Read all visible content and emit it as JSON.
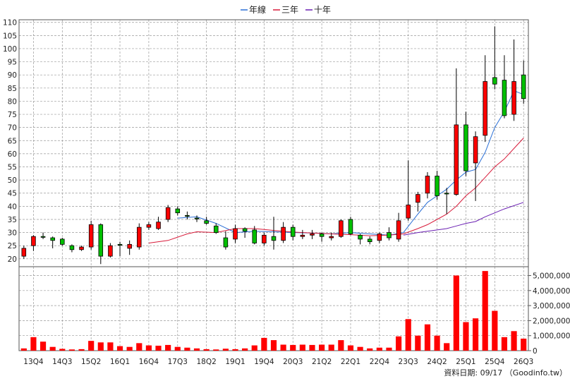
{
  "chart_data": {
    "type": "candlestick_with_volume",
    "legend": [
      {
        "name": "年線",
        "color": "#2a6fd6"
      },
      {
        "name": "三年",
        "color": "#d81b3a"
      },
      {
        "name": "十年",
        "color": "#6a1fb2"
      }
    ],
    "price_axis": {
      "ylim": [
        17,
        111
      ],
      "ticks": [
        20,
        25,
        30,
        35,
        40,
        45,
        50,
        55,
        60,
        65,
        70,
        75,
        80,
        85,
        90,
        95,
        100,
        105,
        110
      ]
    },
    "volume_axis": {
      "ylim": [
        0,
        5400000
      ],
      "ticks": [
        0,
        1000000,
        2000000,
        3000000,
        4000000,
        5000000
      ],
      "tick_labels": [
        "0",
        "1,000,000",
        "2,000,000",
        "3,000,000",
        "4,000,000",
        "5,000,000"
      ]
    },
    "x_tick_labels": [
      {
        "label": "13Q4",
        "index": 1
      },
      {
        "label": "14Q3",
        "index": 4
      },
      {
        "label": "15Q2",
        "index": 7
      },
      {
        "label": "16Q1",
        "index": 10
      },
      {
        "label": "16Q4",
        "index": 13
      },
      {
        "label": "17Q3",
        "index": 16
      },
      {
        "label": "18Q2",
        "index": 19
      },
      {
        "label": "19Q1",
        "index": 22
      },
      {
        "label": "19Q4",
        "index": 25
      },
      {
        "label": "20Q3",
        "index": 28
      },
      {
        "label": "21Q2",
        "index": 31
      },
      {
        "label": "22Q1",
        "index": 34
      },
      {
        "label": "22Q4",
        "index": 37
      },
      {
        "label": "23Q3",
        "index": 40
      },
      {
        "label": "24Q2",
        "index": 43
      },
      {
        "label": "25Q1",
        "index": 46
      },
      {
        "label": "25Q4",
        "index": 49
      },
      {
        "label": "26Q3",
        "index": 52
      }
    ],
    "candles": [
      {
        "o": 21,
        "h": 25,
        "l": 20,
        "c": 24,
        "up": true
      },
      {
        "o": 25,
        "h": 29,
        "l": 23,
        "c": 28.5,
        "up": true
      },
      {
        "o": 28.5,
        "h": 30,
        "l": 27.5,
        "c": 28.5,
        "up": false
      },
      {
        "o": 28,
        "h": 28.5,
        "l": 24,
        "c": 27,
        "up": false
      },
      {
        "o": 27.5,
        "h": 28,
        "l": 25,
        "c": 25.5,
        "up": false
      },
      {
        "o": 25,
        "h": 25.5,
        "l": 22.5,
        "c": 23.5,
        "up": false
      },
      {
        "o": 23.5,
        "h": 25,
        "l": 23,
        "c": 24.5,
        "up": true
      },
      {
        "o": 24.5,
        "h": 34.5,
        "l": 23.5,
        "c": 33,
        "up": true
      },
      {
        "o": 33,
        "h": 33.5,
        "l": 18,
        "c": 21,
        "up": false
      },
      {
        "o": 21,
        "h": 26,
        "l": 20.5,
        "c": 25,
        "up": true
      },
      {
        "o": 25.5,
        "h": 26.5,
        "l": 21,
        "c": 25.5,
        "up": false
      },
      {
        "o": 24,
        "h": 27,
        "l": 21.5,
        "c": 25.5,
        "up": true
      },
      {
        "o": 24.5,
        "h": 33.5,
        "l": 23.5,
        "c": 32,
        "up": true
      },
      {
        "o": 32,
        "h": 34,
        "l": 31,
        "c": 33,
        "up": true
      },
      {
        "o": 31.5,
        "h": 36,
        "l": 31,
        "c": 34,
        "up": true
      },
      {
        "o": 35,
        "h": 40.5,
        "l": 34,
        "c": 39.5,
        "up": true
      },
      {
        "o": 39,
        "h": 40,
        "l": 36.5,
        "c": 37.5,
        "up": false
      },
      {
        "o": 36.5,
        "h": 38,
        "l": 35,
        "c": 36.5,
        "up": false
      },
      {
        "o": 35.5,
        "h": 36.5,
        "l": 34,
        "c": 35.5,
        "up": false
      },
      {
        "o": 34.5,
        "h": 36,
        "l": 33,
        "c": 33.5,
        "up": false
      },
      {
        "o": 32.5,
        "h": 33.5,
        "l": 29.5,
        "c": 30,
        "up": false
      },
      {
        "o": 28,
        "h": 30.5,
        "l": 23.5,
        "c": 24.5,
        "up": false
      },
      {
        "o": 27.5,
        "h": 33,
        "l": 26,
        "c": 31.5,
        "up": true
      },
      {
        "o": 31.5,
        "h": 32,
        "l": 28,
        "c": 30.5,
        "up": false
      },
      {
        "o": 31,
        "h": 32.5,
        "l": 25.5,
        "c": 26,
        "up": false
      },
      {
        "o": 26,
        "h": 30,
        "l": 25,
        "c": 29,
        "up": true
      },
      {
        "o": 28.5,
        "h": 36,
        "l": 23.5,
        "c": 27,
        "up": false
      },
      {
        "o": 27,
        "h": 34,
        "l": 26,
        "c": 32,
        "up": true
      },
      {
        "o": 32,
        "h": 33,
        "l": 27,
        "c": 28.5,
        "up": false
      },
      {
        "o": 28.5,
        "h": 31,
        "l": 27.5,
        "c": 29,
        "up": true
      },
      {
        "o": 29,
        "h": 31,
        "l": 27.5,
        "c": 29.5,
        "up": true
      },
      {
        "o": 29.5,
        "h": 30,
        "l": 26.5,
        "c": 28.5,
        "up": false
      },
      {
        "o": 28,
        "h": 30,
        "l": 27,
        "c": 28.5,
        "up": true
      },
      {
        "o": 28.5,
        "h": 35,
        "l": 28,
        "c": 34.5,
        "up": true
      },
      {
        "o": 35,
        "h": 36,
        "l": 29,
        "c": 29.5,
        "up": false
      },
      {
        "o": 29,
        "h": 29.5,
        "l": 25.5,
        "c": 27.5,
        "up": false
      },
      {
        "o": 27.5,
        "h": 28.5,
        "l": 25.5,
        "c": 26.5,
        "up": false
      },
      {
        "o": 27,
        "h": 30,
        "l": 26,
        "c": 29.5,
        "up": true
      },
      {
        "o": 28,
        "h": 32,
        "l": 27,
        "c": 30,
        "up": false
      },
      {
        "o": 27.5,
        "h": 37.5,
        "l": 26.5,
        "c": 34.5,
        "up": true
      },
      {
        "o": 35.5,
        "h": 57.5,
        "l": 34.5,
        "c": 40.5,
        "up": true
      },
      {
        "o": 41.5,
        "h": 45.5,
        "l": 38,
        "c": 44.5,
        "up": true
      },
      {
        "o": 45,
        "h": 53,
        "l": 43,
        "c": 51.5,
        "up": true
      },
      {
        "o": 51.5,
        "h": 53.5,
        "l": 42.5,
        "c": 44,
        "up": false
      },
      {
        "o": 45,
        "h": 47,
        "l": 37,
        "c": 45,
        "up": false
      },
      {
        "o": 44.5,
        "h": 92.5,
        "l": 44,
        "c": 71,
        "up": true
      },
      {
        "o": 71,
        "h": 76,
        "l": 51.5,
        "c": 53.5,
        "up": false
      },
      {
        "o": 56.5,
        "h": 68.5,
        "l": 42,
        "c": 66.5,
        "up": true
      },
      {
        "o": 67,
        "h": 97.5,
        "l": 64.5,
        "c": 87.5,
        "up": true
      },
      {
        "o": 89,
        "h": 108.5,
        "l": 84.5,
        "c": 86.5,
        "up": false
      },
      {
        "o": 88,
        "h": 97.5,
        "l": 73.5,
        "c": 74.5,
        "up": false
      },
      {
        "o": 75,
        "h": 103.5,
        "l": 72.5,
        "c": 87.5,
        "up": true
      },
      {
        "o": 81,
        "h": 95.5,
        "l": 79,
        "c": 90,
        "up": false
      }
    ],
    "volume": [
      150000,
      900000,
      600000,
      250000,
      120000,
      80000,
      100000,
      650000,
      550000,
      550000,
      300000,
      250000,
      500000,
      350000,
      330000,
      380000,
      250000,
      200000,
      150000,
      100000,
      80000,
      130000,
      100000,
      150000,
      350000,
      850000,
      700000,
      400000,
      380000,
      400000,
      380000,
      400000,
      400000,
      700000,
      350000,
      250000,
      150000,
      200000,
      200000,
      950000,
      2100000,
      1000000,
      1750000,
      1000000,
      500000,
      5000000,
      1900000,
      2150000,
      5300000,
      2650000,
      900000,
      1300000,
      800000
    ],
    "ma_year": [
      [
        16,
        35.5
      ],
      [
        18,
        36
      ],
      [
        20,
        33.5
      ],
      [
        22,
        30
      ],
      [
        24,
        30.5
      ],
      [
        26,
        30.3
      ],
      [
        28,
        30
      ],
      [
        30,
        29.8
      ],
      [
        32,
        29.5
      ],
      [
        34,
        30
      ],
      [
        36,
        29.5
      ],
      [
        38,
        29
      ],
      [
        39.5,
        30
      ],
      [
        41,
        37
      ],
      [
        42,
        41.5
      ],
      [
        43,
        44
      ],
      [
        44,
        46.5
      ],
      [
        45,
        50
      ],
      [
        46,
        53
      ],
      [
        47,
        54
      ],
      [
        48,
        60.5
      ],
      [
        49,
        70
      ],
      [
        50,
        76
      ],
      [
        50.5,
        80
      ],
      [
        51,
        84
      ],
      [
        52,
        82.5
      ]
    ],
    "ma_three": [
      [
        13,
        26
      ],
      [
        15,
        27
      ],
      [
        17,
        29.5
      ],
      [
        18,
        30.3
      ],
      [
        20,
        30
      ],
      [
        22,
        31.5
      ],
      [
        24,
        31.5
      ],
      [
        26,
        30.8
      ],
      [
        28,
        30.2
      ],
      [
        30,
        29.8
      ],
      [
        32,
        29.5
      ],
      [
        34,
        29.2
      ],
      [
        36,
        28.8
      ],
      [
        38,
        29
      ],
      [
        39.5,
        29.5
      ],
      [
        41,
        31.5
      ],
      [
        42,
        33
      ],
      [
        43,
        35
      ],
      [
        44,
        37
      ],
      [
        45,
        40
      ],
      [
        46,
        44
      ],
      [
        47,
        47
      ],
      [
        48,
        51
      ],
      [
        49,
        55
      ],
      [
        50,
        58
      ],
      [
        51,
        62
      ],
      [
        52,
        66
      ]
    ],
    "ma_ten": [
      [
        39.5,
        29
      ],
      [
        41,
        30
      ],
      [
        43,
        31
      ],
      [
        44,
        31.5
      ],
      [
        45,
        32.5
      ],
      [
        46,
        33.5
      ],
      [
        47,
        34.2
      ],
      [
        48,
        36
      ],
      [
        49,
        37.5
      ],
      [
        50,
        39
      ],
      [
        52,
        41.5
      ]
    ],
    "credit_text": "資料日期: 09/17 （Goodinfo.tw）"
  }
}
